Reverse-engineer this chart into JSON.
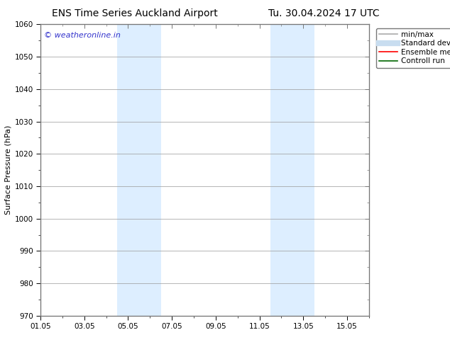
{
  "title_left": "ENS Time Series Auckland Airport",
  "title_right": "Tu. 30.04.2024 17 UTC",
  "ylabel": "Surface Pressure (hPa)",
  "ylim": [
    970,
    1060
  ],
  "yticks": [
    970,
    980,
    990,
    1000,
    1010,
    1020,
    1030,
    1040,
    1050,
    1060
  ],
  "xtick_labels": [
    "01.05",
    "03.05",
    "05.05",
    "07.05",
    "09.05",
    "11.05",
    "13.05",
    "15.05"
  ],
  "xtick_positions": [
    0,
    2,
    4,
    6,
    8,
    10,
    12,
    14
  ],
  "xlim": [
    0,
    15
  ],
  "shaded_bands": [
    {
      "x_start": 3.5,
      "x_end": 5.5,
      "color": "#ddeeff"
    },
    {
      "x_start": 10.5,
      "x_end": 12.5,
      "color": "#ddeeff"
    }
  ],
  "background_color": "#ffffff",
  "plot_bg_color": "#ffffff",
  "grid_color": "#999999",
  "watermark_text": "© weatheronline.in",
  "watermark_color": "#3333cc",
  "legend_items": [
    {
      "label": "min/max",
      "color": "#aaaaaa",
      "lw": 1.2,
      "style": "solid"
    },
    {
      "label": "Standard deviation",
      "color": "#c8ddf0",
      "lw": 6,
      "style": "solid"
    },
    {
      "label": "Ensemble mean run",
      "color": "#ff0000",
      "lw": 1.2,
      "style": "solid"
    },
    {
      "label": "Controll run",
      "color": "#006600",
      "lw": 1.2,
      "style": "solid"
    }
  ],
  "border_color": "#777777",
  "tick_color": "#000000",
  "fontsize_title": 10,
  "fontsize_axis": 8,
  "fontsize_tick": 7.5,
  "fontsize_legend": 7.5,
  "fontsize_watermark": 8
}
